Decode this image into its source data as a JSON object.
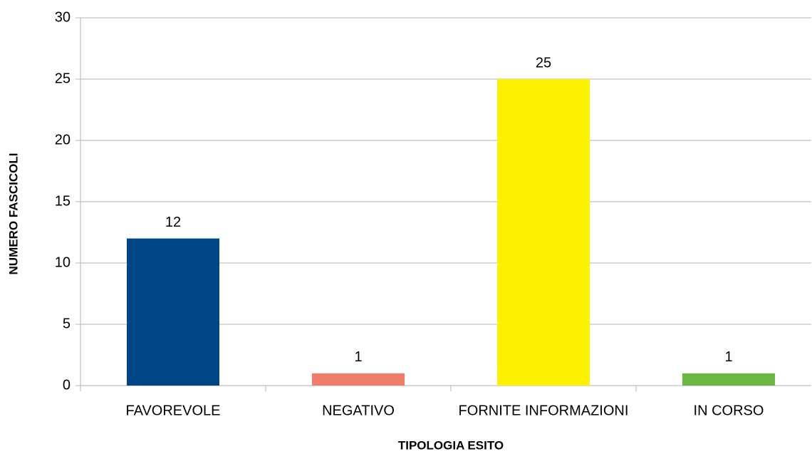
{
  "chart_data": {
    "type": "bar",
    "x_label": "TIPOLOGIA ESITO",
    "y_label": "NUMERO FASCICOLI",
    "categories": [
      "FAVOREVOLE",
      "NEGATIVO",
      "FORNITE INFORMAZIONI",
      "IN CORSO"
    ],
    "values": [
      12,
      1,
      25,
      1
    ],
    "colors": [
      "#004586",
      "#f07c6c",
      "#fff200",
      "#6cb744"
    ],
    "ylim": [
      0,
      30
    ],
    "yticks": [
      0,
      5,
      10,
      15,
      20,
      25,
      30
    ],
    "grid": true
  }
}
